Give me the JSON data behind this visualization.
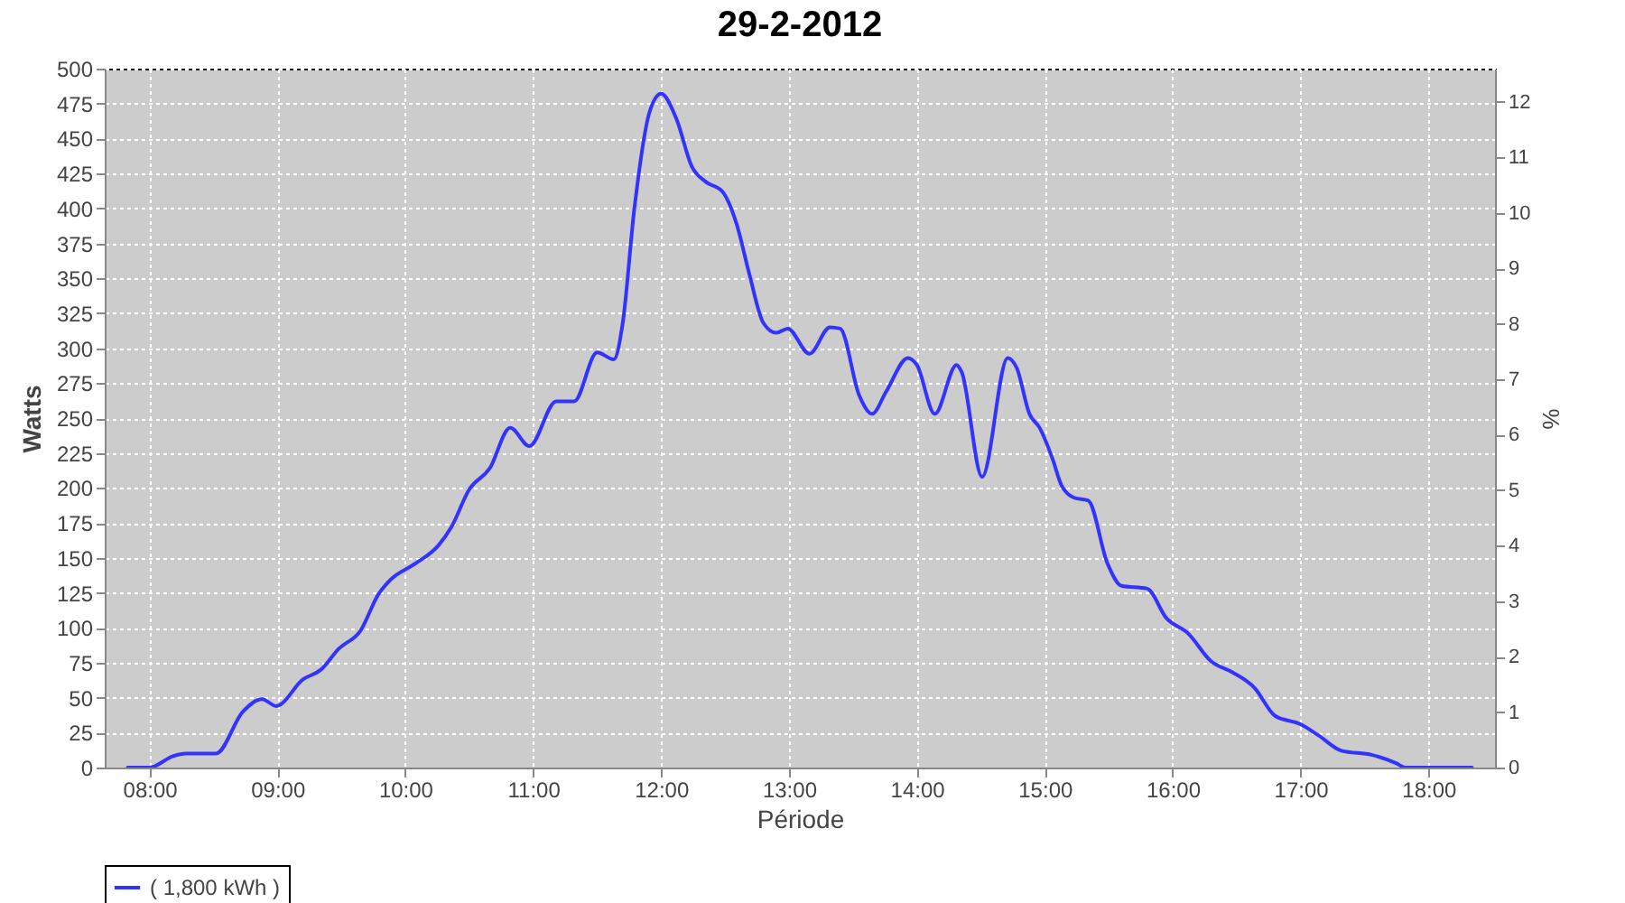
{
  "chart_data": {
    "type": "line",
    "title": "29-2-2012",
    "xlabel": "Période",
    "ylabel": "Watts",
    "y2label": "%",
    "xlim": [
      7.65,
      18.52
    ],
    "xticks": [
      {
        "value": 8,
        "label": "08:00"
      },
      {
        "value": 9,
        "label": "09:00"
      },
      {
        "value": 10,
        "label": "10:00"
      },
      {
        "value": 11,
        "label": "11:00"
      },
      {
        "value": 12,
        "label": "12:00"
      },
      {
        "value": 13,
        "label": "13:00"
      },
      {
        "value": 14,
        "label": "14:00"
      },
      {
        "value": 15,
        "label": "15:00"
      },
      {
        "value": 16,
        "label": "16:00"
      },
      {
        "value": 17,
        "label": "17:00"
      },
      {
        "value": 18,
        "label": "18:00"
      }
    ],
    "ylim": [
      0,
      500
    ],
    "yticks": [
      0,
      25,
      50,
      75,
      100,
      125,
      150,
      175,
      200,
      225,
      250,
      275,
      300,
      325,
      350,
      375,
      400,
      425,
      450,
      475,
      500
    ],
    "y2lim": [
      0,
      12.6
    ],
    "y2ticks": [
      0,
      1,
      2,
      3,
      4,
      5,
      6,
      7,
      8,
      9,
      10,
      11,
      12
    ],
    "grid": true,
    "legend": "bottom",
    "marker": "none",
    "line_style": "solid",
    "series": [
      {
        "name": "( 1,800 kWh )",
        "color": "#3333ff",
        "x": [
          7.83,
          8.0,
          8.18,
          8.28,
          8.52,
          8.73,
          8.88,
          8.99,
          9.2,
          9.34,
          9.48,
          9.65,
          9.79,
          9.88,
          10.08,
          10.26,
          10.36,
          10.5,
          10.66,
          10.82,
          10.97,
          11.18,
          11.32,
          11.5,
          11.63,
          11.7,
          11.79,
          11.91,
          12.0,
          12.12,
          12.24,
          12.35,
          12.48,
          12.59,
          12.69,
          12.8,
          12.9,
          12.99,
          13.16,
          13.32,
          13.4,
          13.55,
          13.65,
          13.76,
          13.93,
          14.0,
          14.14,
          14.31,
          14.35,
          14.51,
          14.71,
          14.78,
          14.88,
          14.96,
          15.06,
          15.13,
          15.23,
          15.34,
          15.49,
          15.6,
          15.8,
          15.95,
          16.12,
          16.3,
          16.47,
          16.64,
          16.8,
          17.0,
          17.14,
          17.32,
          17.56,
          17.75,
          17.82,
          18.34
        ],
        "values": [
          0,
          0,
          8,
          10,
          10,
          40,
          49,
          44,
          63,
          70,
          85,
          98,
          124,
          134,
          146,
          159,
          172,
          199,
          214,
          243,
          230,
          262,
          262,
          297,
          292,
          318,
          399,
          469,
          482,
          464,
          430,
          419,
          412,
          389,
          353,
          318,
          311,
          314,
          296,
          315,
          314,
          266,
          253,
          269,
          293,
          288,
          253,
          288,
          283,
          208,
          293,
          286,
          253,
          243,
          221,
          202,
          193,
          191,
          146,
          130,
          128,
          107,
          96,
          76,
          68,
          57,
          37,
          31,
          23,
          12,
          9,
          3,
          0,
          0
        ]
      }
    ]
  }
}
